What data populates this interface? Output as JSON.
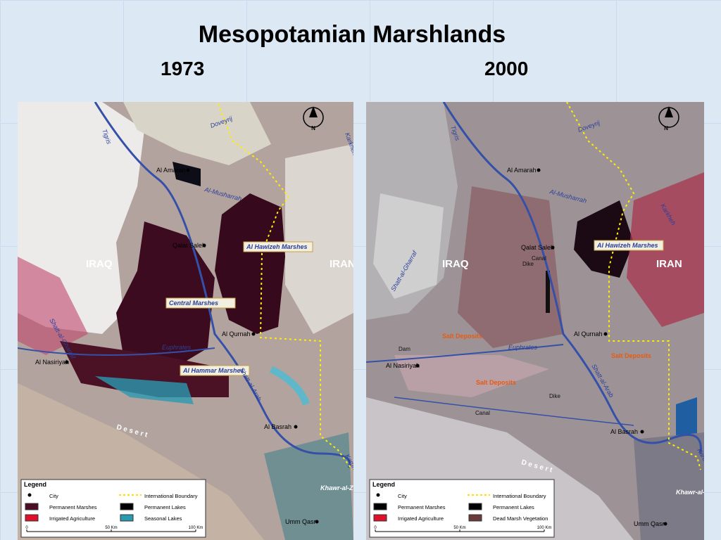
{
  "title": "Mesopotamian Marshlands",
  "maps": [
    {
      "year": "1973",
      "north": "N",
      "labels": [
        "Tigris",
        "Karkheh",
        "Doveyrij",
        "Al Amarah",
        "Al-Musharrah",
        "Qalat Saleh",
        "Al Hawizeh Marshes",
        "IRAQ",
        "IRAN",
        "Central Marshes",
        "Shatt-al-Gharraf",
        "Al Qurnah",
        "Euphrates",
        "Al Nasiriyah",
        "Al Hammar Marshes",
        "Shatt-al-Arab",
        "D e s e r t",
        "Al Basrah",
        "Karun",
        "Khawr-al-Zubayr",
        "Umm Qasr"
      ],
      "legend": {
        "title": "Legend",
        "items": [
          "City",
          "International Boundary",
          "Permanent Marshes",
          "Permanent Lakes",
          "Irrigated Agriculture",
          "Seasonal Lakes"
        ],
        "scale": [
          "0",
          "50 Km",
          "100 Km"
        ]
      }
    },
    {
      "year": "2000",
      "north": "N",
      "labels": [
        "Tigris",
        "Doveyrij",
        "Al Amarah",
        "Al-Musharrah",
        "Karkheh",
        "Qalat Saleh",
        "Al Hawizeh Marshes",
        "IRAQ",
        "IRAN",
        "Canal",
        "Dike",
        "Shatt-al-Gharraf",
        "Salt Deposits",
        "Al Qurnah",
        "Dam",
        "Euphrates",
        "Al Nasiriyah",
        "Salt Deposits",
        "Shatt-al-Arab",
        "Salt Deposits",
        "Dike",
        "Canal",
        "D e s e r t",
        "Al Basrah",
        "Karun",
        "Khawr-al-Zubayr",
        "Umm Qasr"
      ],
      "legend": {
        "title": "Legend",
        "items": [
          "City",
          "International Boundary",
          "Permanent Marshes",
          "Permanent Lakes",
          "Irrigated Agriculture",
          "Dead Marsh Vegetation"
        ],
        "scale": [
          "0",
          "50 Km",
          "100 Km"
        ]
      }
    }
  ]
}
